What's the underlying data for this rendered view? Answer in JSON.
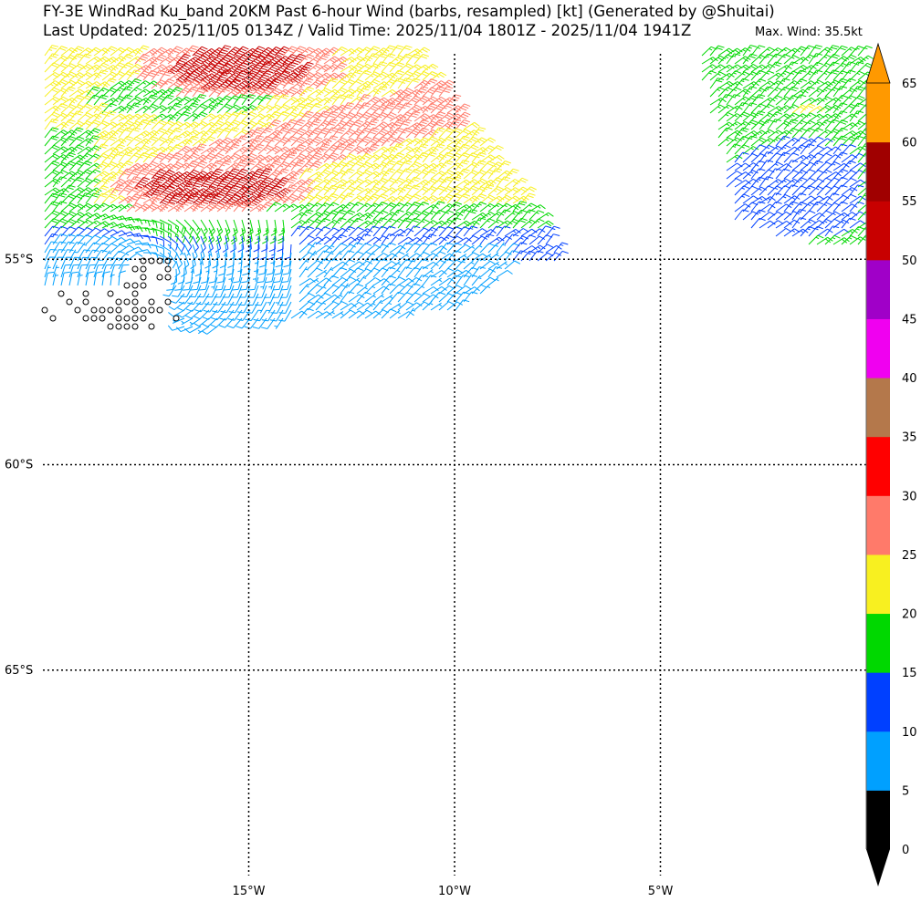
{
  "header": {
    "title": "FY-3E WindRad Ku_band 20KM Past 6-hour Wind (barbs, resampled) [kt] (Generated by @Shuitai)",
    "subtitle": "Last Updated: 2025/11/05 0134Z / Valid Time: 2025/11/04 1801Z - 2025/11/04 1941Z",
    "max_wind": "Max. Wind: 35.5kt"
  },
  "map": {
    "lon_range": [
      -20,
      0
    ],
    "lat_range": [
      -70,
      -50
    ],
    "lon_ticks": [
      {
        "value": -15,
        "label": "15°W"
      },
      {
        "value": -10,
        "label": "10°W"
      },
      {
        "value": -5,
        "label": "5°W"
      }
    ],
    "lat_ticks": [
      {
        "value": -55,
        "label": "55°S"
      },
      {
        "value": -60,
        "label": "60°S"
      },
      {
        "value": -65,
        "label": "65°S"
      }
    ]
  },
  "colorbar": {
    "unit": "kt",
    "levels": [
      {
        "from": 0,
        "to": 5,
        "color": "#000000"
      },
      {
        "from": 5,
        "to": 10,
        "color": "#00a0ff"
      },
      {
        "from": 10,
        "to": 15,
        "color": "#0040ff"
      },
      {
        "from": 15,
        "to": 20,
        "color": "#00d800"
      },
      {
        "from": 20,
        "to": 25,
        "color": "#f8f020"
      },
      {
        "from": 25,
        "to": 30,
        "color": "#ff7a6a"
      },
      {
        "from": 30,
        "to": 35,
        "color": "#ff0000"
      },
      {
        "from": 35,
        "to": 40,
        "color": "#b4784b"
      },
      {
        "from": 40,
        "to": 45,
        "color": "#f000f0"
      },
      {
        "from": 45,
        "to": 50,
        "color": "#a000c8"
      },
      {
        "from": 50,
        "to": 55,
        "color": "#c80000"
      },
      {
        "from": 55,
        "to": 60,
        "color": "#a00000"
      },
      {
        "from": 60,
        "to": 65,
        "color": "#ff9900"
      }
    ],
    "tick_labels": [
      "0",
      "5",
      "10",
      "15",
      "20",
      "25",
      "30",
      "35",
      "40",
      "45",
      "50",
      "55",
      "60",
      "65"
    ]
  }
}
